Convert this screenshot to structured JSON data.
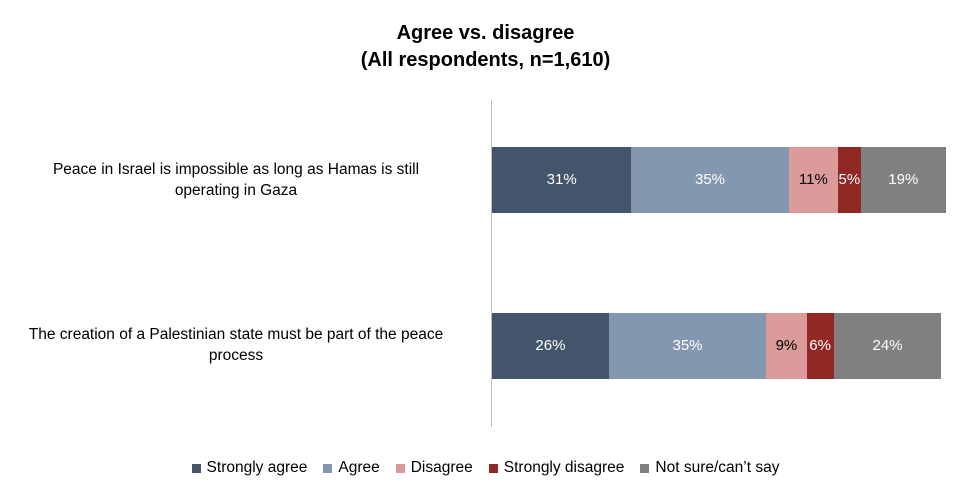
{
  "chart_data": {
    "type": "bar",
    "orientation": "horizontal",
    "stacked": true,
    "title": "Agree vs. disagree",
    "subtitle": "(All respondents, n=1,610)",
    "categories": [
      "Peace in Israel is impossible as long as Hamas is still operating in Gaza",
      "The creation of a Palestinian state must be part of the peace process"
    ],
    "category_lines": [
      [
        "Peace in Israel is impossible as long as Hamas is still",
        "operating in Gaza"
      ],
      [
        "The creation of a Palestinian state must be part of the peace",
        "process"
      ]
    ],
    "series": [
      {
        "name": "Strongly agree",
        "values": [
          31,
          26
        ],
        "color": "#44546a"
      },
      {
        "name": "Agree",
        "values": [
          35,
          35
        ],
        "color": "#8497b0"
      },
      {
        "name": "Disagree",
        "values": [
          11,
          9
        ],
        "color": "#dc9b9b"
      },
      {
        "name": "Strongly disagree",
        "values": [
          5,
          6
        ],
        "color": "#922824"
      },
      {
        "name": "Not sure/can’t say",
        "values": [
          19,
          24
        ],
        "color": "#808080"
      }
    ],
    "value_suffix": "%",
    "xlim": [
      0,
      101
    ],
    "grid": false,
    "legend_position": "bottom"
  }
}
